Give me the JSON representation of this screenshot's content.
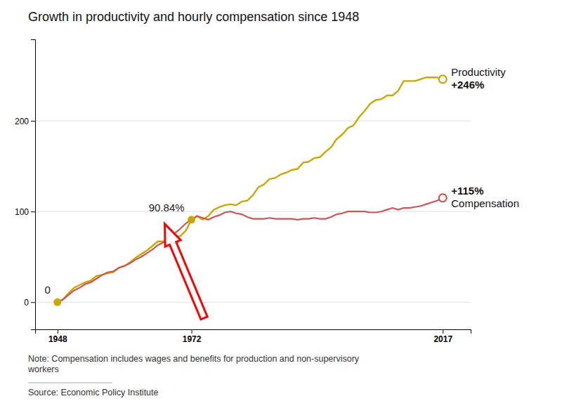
{
  "chart_data": {
    "type": "line",
    "title": "Growth in productivity and hourly compensation since 1948",
    "note": "Note: Compensation includes wages and benefits for production and non-supervisory\nworkers",
    "source": "Source: Economic Policy Institute",
    "x": [
      1948,
      1949,
      1950,
      1951,
      1952,
      1953,
      1954,
      1955,
      1956,
      1957,
      1958,
      1959,
      1960,
      1961,
      1962,
      1963,
      1964,
      1965,
      1966,
      1967,
      1968,
      1969,
      1970,
      1971,
      1972,
      1973,
      1974,
      1975,
      1976,
      1977,
      1978,
      1979,
      1980,
      1981,
      1982,
      1983,
      1984,
      1985,
      1986,
      1987,
      1988,
      1989,
      1990,
      1991,
      1992,
      1993,
      1994,
      1995,
      1996,
      1997,
      1998,
      1999,
      2000,
      2001,
      2002,
      2003,
      2004,
      2005,
      2006,
      2007,
      2008,
      2009,
      2010,
      2011,
      2012,
      2013,
      2014,
      2015,
      2016,
      2017
    ],
    "series": [
      {
        "color": "#c8a800",
        "label_lines": [
          "Productivity",
          "+246%"
        ],
        "values": [
          0,
          3,
          10,
          16,
          19,
          22,
          24,
          29,
          30,
          32,
          33,
          38,
          40,
          44,
          49,
          53,
          57,
          62,
          67,
          67,
          72,
          72,
          73,
          79,
          91,
          95,
          91,
          95,
          102,
          105,
          107,
          108,
          107,
          111,
          112,
          118,
          127,
          130,
          136,
          137,
          141,
          143,
          146,
          147,
          154,
          155,
          159,
          160,
          166,
          171,
          180,
          185,
          192,
          195,
          204,
          211,
          219,
          223,
          224,
          228,
          228,
          233,
          244,
          244,
          244,
          246,
          248,
          248,
          248,
          246
        ]
      },
      {
        "color": "#cc5555",
        "label_lines": [
          "+115%",
          "Compensation"
        ],
        "values": [
          0,
          3,
          8,
          13,
          16,
          20,
          22,
          26,
          30,
          33,
          34,
          38,
          40,
          43,
          47,
          50,
          54,
          58,
          63,
          66,
          71,
          76,
          81,
          87,
          91,
          95,
          93,
          91,
          94,
          96,
          99,
          100,
          98,
          97,
          94,
          92,
          92,
          92,
          93,
          92,
          92,
          92,
          92,
          91,
          92,
          92,
          93,
          92,
          92,
          94,
          97,
          98,
          100,
          100,
          100,
          100,
          99,
          99,
          100,
          102,
          104,
          102,
          104,
          104,
          105,
          106,
          108,
          110,
          112,
          115
        ]
      }
    ],
    "highlights": [
      {
        "x": 1948,
        "y": 0
      },
      {
        "x": 1972,
        "y": 91
      }
    ],
    "annotations": [
      "0",
      "90.84%"
    ],
    "xlim": [
      1944,
      2022
    ],
    "xticks": [
      1948,
      1972,
      2017
    ],
    "ylim": [
      -30,
      290
    ],
    "yticks": [
      0,
      100,
      200
    ],
    "grid": true
  }
}
